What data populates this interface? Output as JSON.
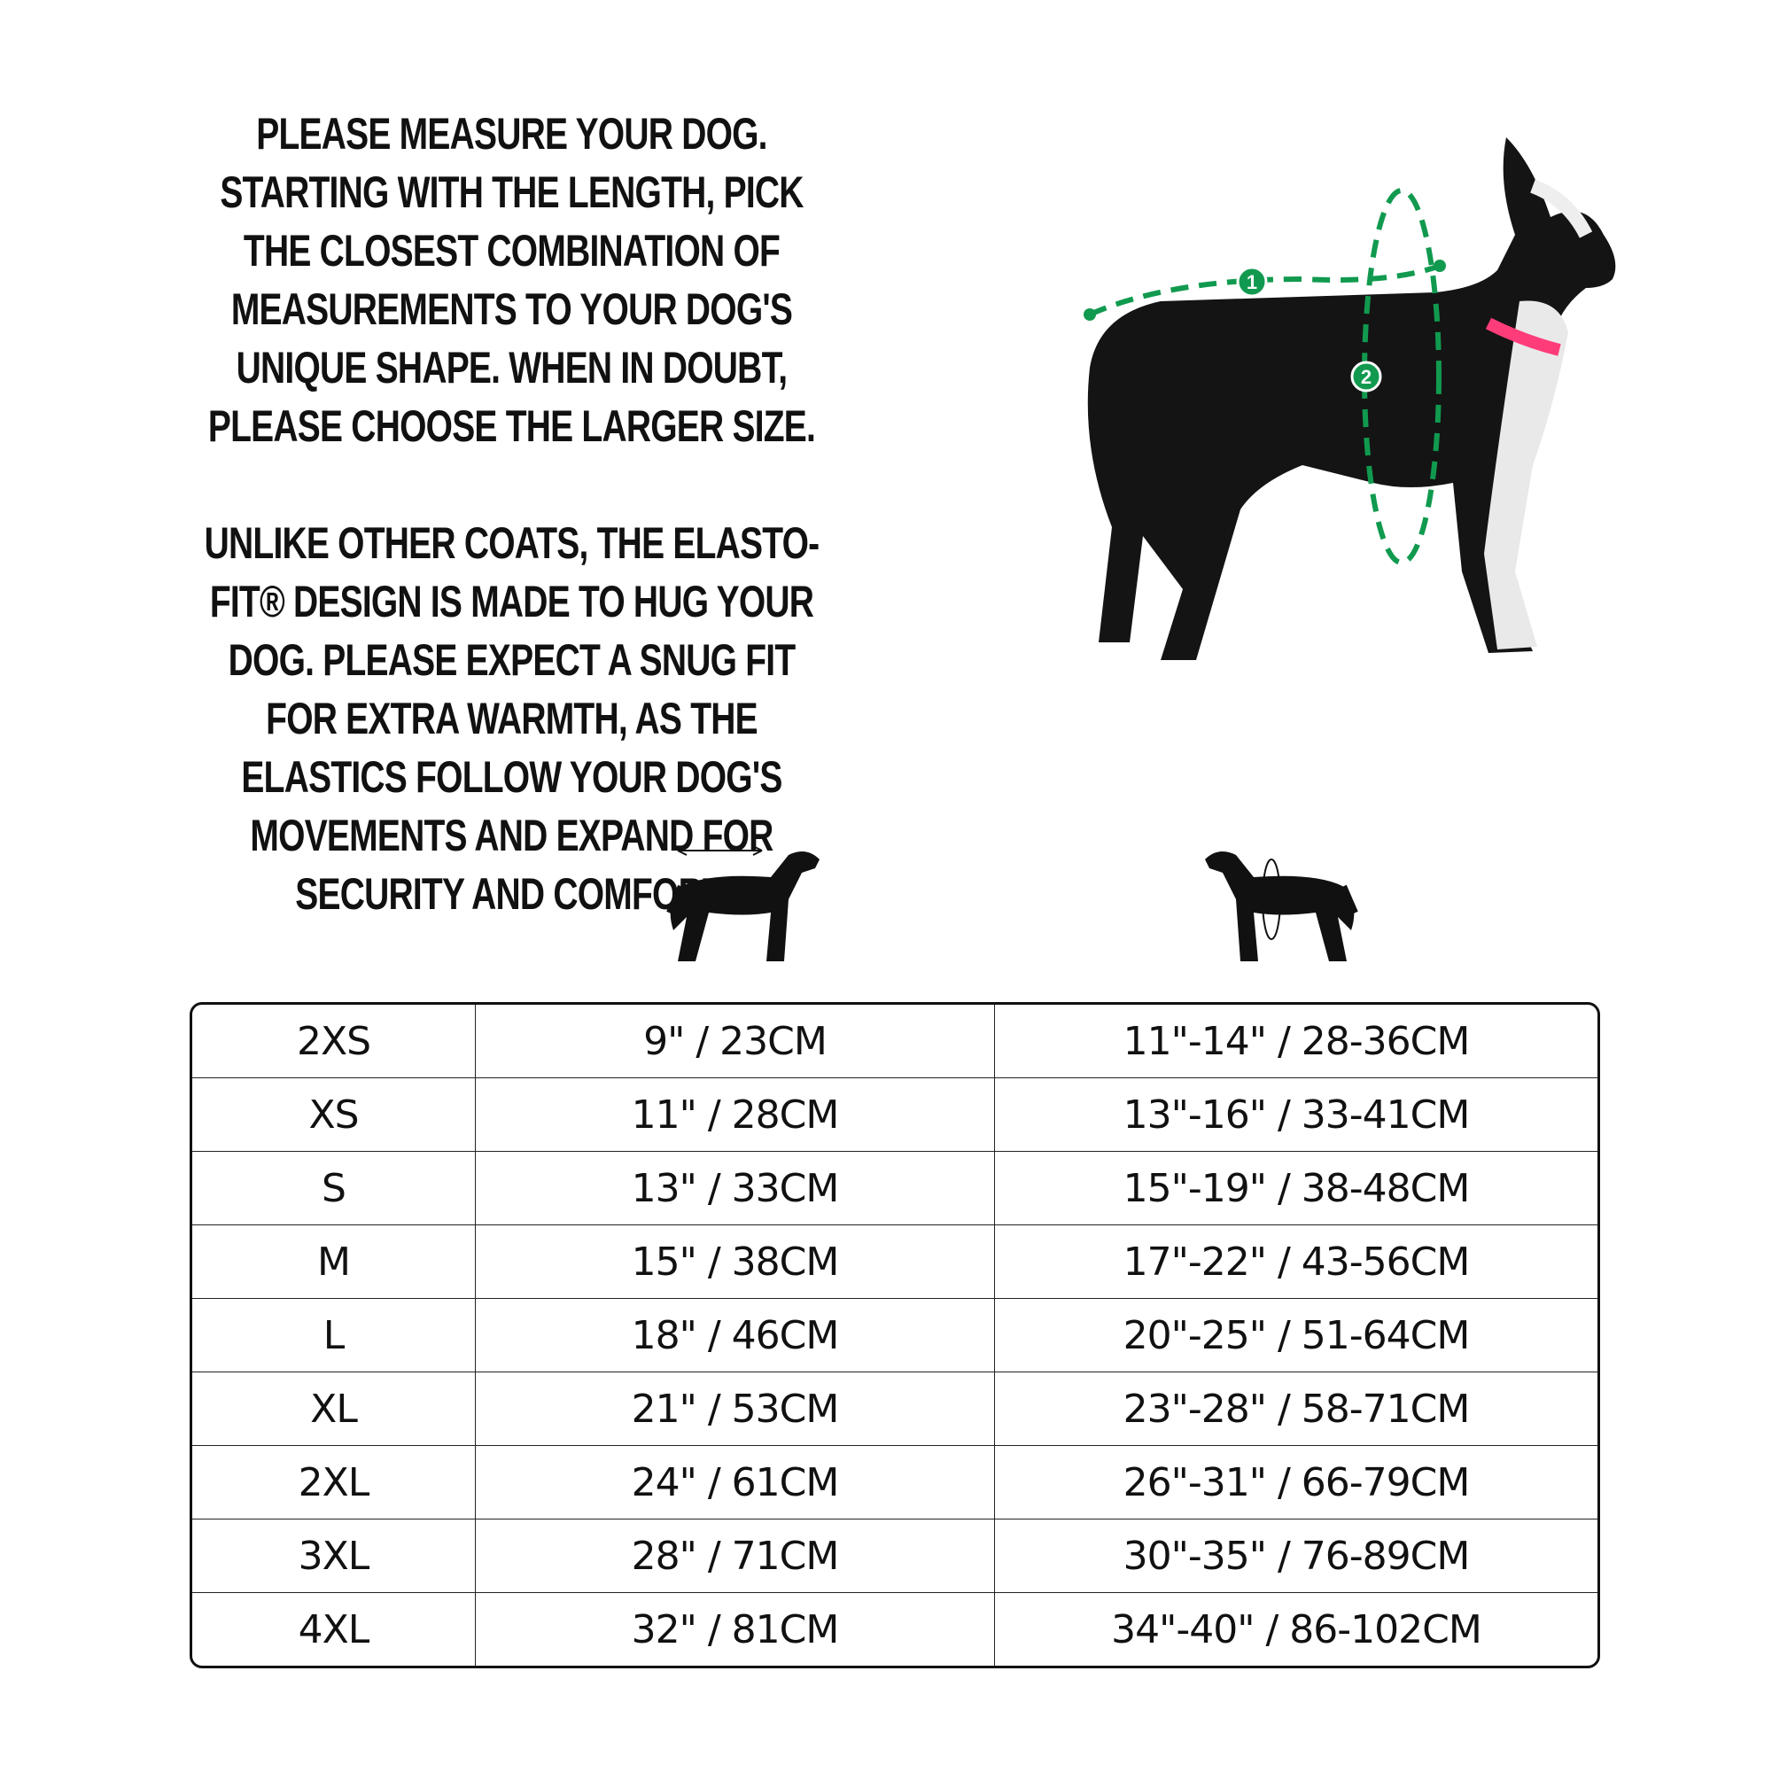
{
  "intro": {
    "paragraph1": "Please measure your dog. Starting with the length, pick the closest combination of measurements to your dog's unique shape. When in doubt, please choose the larger size.",
    "paragraph2": "Unlike other coats, the Elasto-Fit® design is made to hug your dog. Please expect a snug fit for extra warmth, as the elastics follow your dog's movements and expand for security and comfort."
  },
  "photo": {
    "marker1": "1",
    "marker2": "2",
    "accent": "#119a4f",
    "collar": "#ff3c7a"
  },
  "icons": [
    "dog-length-icon",
    "dog-chest-girth-icon"
  ],
  "size_table": {
    "rows": [
      [
        "2XS",
        "9\" / 23CM",
        "11\"-14\" / 28-36CM"
      ],
      [
        "XS",
        "11\" / 28CM",
        "13\"-16\" / 33-41CM"
      ],
      [
        "S",
        "13\" / 33CM",
        "15\"-19\" / 38-48CM"
      ],
      [
        "M",
        "15\" / 38CM",
        "17\"-22\" / 43-56CM"
      ],
      [
        "L",
        "18\" / 46CM",
        "20\"-25\" / 51-64CM"
      ],
      [
        "XL",
        "21\" / 53CM",
        "23\"-28\" / 58-71CM"
      ],
      [
        "2XL",
        "24\" / 61CM",
        "26\"-31\" / 66-79CM"
      ],
      [
        "3XL",
        "28\" / 71CM",
        "30\"-35\" / 76-89CM"
      ],
      [
        "4XL",
        "32\" / 81CM",
        "34\"-40\" / 86-102CM"
      ]
    ]
  }
}
